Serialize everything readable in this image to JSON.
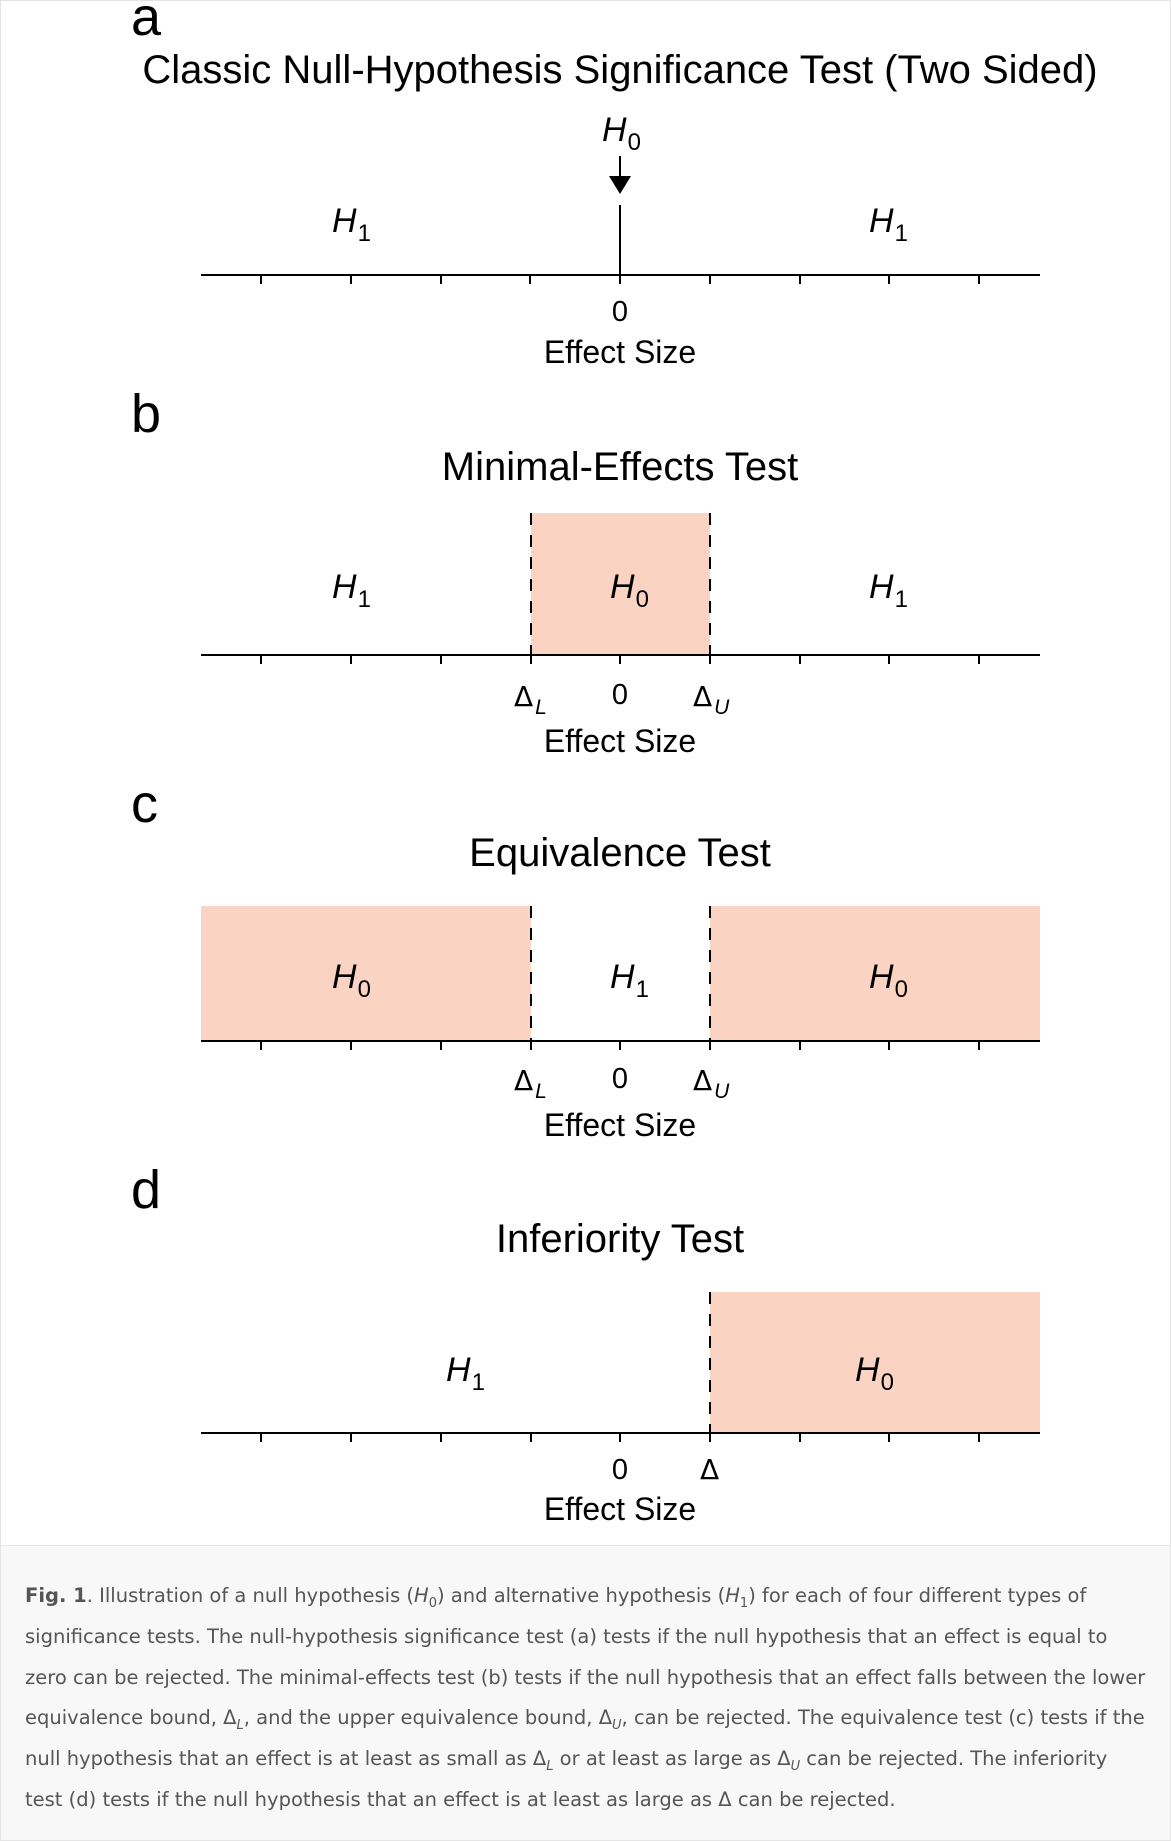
{
  "colors": {
    "null_region_fill": "#fad3c3",
    "axis": "#000000",
    "caption_text": "#555555",
    "caption_background": "#f8f8f8"
  },
  "panels": {
    "a": {
      "letter": "a",
      "title": "Classic Null-Hypothesis Significance Test (Two Sided)",
      "axis_label": "Effect Size",
      "zero_label": "0",
      "h0_base": "H",
      "h0_sub": "0",
      "h1_base": "H",
      "h1_sub": "1",
      "h0_marker": "arrow-down-icon"
    },
    "b": {
      "letter": "b",
      "title": "Minimal-Effects Test",
      "axis_label": "Effect Size",
      "zero_label": "0",
      "delta": "Δ",
      "lower_sub": "L",
      "upper_sub": "U",
      "h0_base": "H",
      "h0_sub": "0",
      "h1_base": "H",
      "h1_sub": "1"
    },
    "c": {
      "letter": "c",
      "title": "Equivalence Test",
      "axis_label": "Effect Size",
      "zero_label": "0",
      "delta": "Δ",
      "lower_sub": "L",
      "upper_sub": "U",
      "h0_base": "H",
      "h0_sub": "0",
      "h1_base": "H",
      "h1_sub": "1"
    },
    "d": {
      "letter": "d",
      "title": "Inferiority Test",
      "axis_label": "Effect Size",
      "zero_label": "0",
      "delta": "Δ",
      "h0_base": "H",
      "h0_sub": "0",
      "h1_base": "H",
      "h1_sub": "1"
    }
  },
  "caption": {
    "label": "Fig. 1",
    "p1": ". Illustration of a null hypothesis (",
    "h": "H",
    "s0": "0",
    "p2": ") and alternative hypothesis (",
    "s1": "1",
    "p3": ") for each of four different types of significance tests. The null-hypothesis significance test (a) tests if the null hypothesis that an effect is equal to zero can be rejected. The minimal-effects test (b) tests if the null hypothesis that an effect falls between the lower equivalence bound, ",
    "delta": "Δ",
    "sL": "L",
    "p4": ", and the upper equivalence bound, ",
    "sU": "U",
    "p5": ", can be rejected. The equivalence test (c) tests if the null hypothesis that an effect is at least as small as ",
    "p6": " or at least as large as ",
    "p7": " can be rejected. The inferiority test (d) tests if the null hypothesis that an effect is at least as large as ",
    "p8": " can be rejected."
  }
}
